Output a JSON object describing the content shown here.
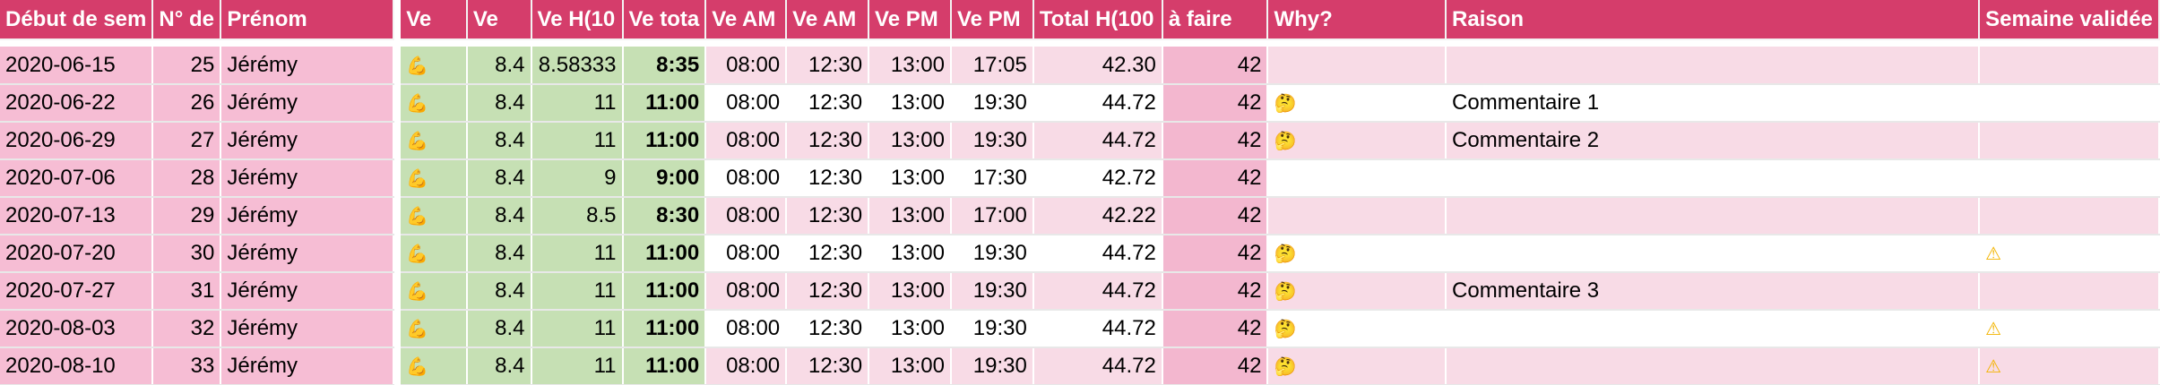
{
  "colors": {
    "header_bg": "#d53d6b",
    "left_pink": "#f6bdd4",
    "green": "#c6e0b4",
    "stripe": "#f8dbe6"
  },
  "headers": {
    "date": "Début de sem",
    "week": "N° de",
    "name": "Prénom",
    "ve1": "Ve",
    "ve2": "Ve",
    "veh": "Ve H(10",
    "vetot": "Ve tota",
    "veam1": "Ve AM",
    "veam2": "Ve AM",
    "vepm1": "Ve PM",
    "vepm2": "Ve PM",
    "total": "Total H(100",
    "afaire": "à faire",
    "why": "Why?",
    "raison": "Raison",
    "validee": "Semaine validée"
  },
  "icons": {
    "muscle": "muscle-icon",
    "thinking": "thinking-face-icon",
    "warning": "warning-icon"
  },
  "rows": [
    {
      "date": "2020-06-15",
      "week": "25",
      "name": "Jérémy",
      "ve": "8.4",
      "veh": "8.58333",
      "vetot": "8:35",
      "am1": "08:00",
      "am2": "12:30",
      "pm1": "13:00",
      "pm2": "17:05",
      "total": "42.30",
      "afaire": "42",
      "why": false,
      "raison": "",
      "warn": false
    },
    {
      "date": "2020-06-22",
      "week": "26",
      "name": "Jérémy",
      "ve": "8.4",
      "veh": "11",
      "vetot": "11:00",
      "am1": "08:00",
      "am2": "12:30",
      "pm1": "13:00",
      "pm2": "19:30",
      "total": "44.72",
      "afaire": "42",
      "why": true,
      "raison": "Commentaire 1",
      "warn": false
    },
    {
      "date": "2020-06-29",
      "week": "27",
      "name": "Jérémy",
      "ve": "8.4",
      "veh": "11",
      "vetot": "11:00",
      "am1": "08:00",
      "am2": "12:30",
      "pm1": "13:00",
      "pm2": "19:30",
      "total": "44.72",
      "afaire": "42",
      "why": true,
      "raison": "Commentaire 2",
      "warn": false
    },
    {
      "date": "2020-07-06",
      "week": "28",
      "name": "Jérémy",
      "ve": "8.4",
      "veh": "9",
      "vetot": "9:00",
      "am1": "08:00",
      "am2": "12:30",
      "pm1": "13:00",
      "pm2": "17:30",
      "total": "42.72",
      "afaire": "42",
      "why": false,
      "raison": "",
      "warn": false
    },
    {
      "date": "2020-07-13",
      "week": "29",
      "name": "Jérémy",
      "ve": "8.4",
      "veh": "8.5",
      "vetot": "8:30",
      "am1": "08:00",
      "am2": "12:30",
      "pm1": "13:00",
      "pm2": "17:00",
      "total": "42.22",
      "afaire": "42",
      "why": false,
      "raison": "",
      "warn": false
    },
    {
      "date": "2020-07-20",
      "week": "30",
      "name": "Jérémy",
      "ve": "8.4",
      "veh": "11",
      "vetot": "11:00",
      "am1": "08:00",
      "am2": "12:30",
      "pm1": "13:00",
      "pm2": "19:30",
      "total": "44.72",
      "afaire": "42",
      "why": true,
      "raison": "",
      "warn": true
    },
    {
      "date": "2020-07-27",
      "week": "31",
      "name": "Jérémy",
      "ve": "8.4",
      "veh": "11",
      "vetot": "11:00",
      "am1": "08:00",
      "am2": "12:30",
      "pm1": "13:00",
      "pm2": "19:30",
      "total": "44.72",
      "afaire": "42",
      "why": true,
      "raison": "Commentaire 3",
      "warn": false
    },
    {
      "date": "2020-08-03",
      "week": "32",
      "name": "Jérémy",
      "ve": "8.4",
      "veh": "11",
      "vetot": "11:00",
      "am1": "08:00",
      "am2": "12:30",
      "pm1": "13:00",
      "pm2": "19:30",
      "total": "44.72",
      "afaire": "42",
      "why": true,
      "raison": "",
      "warn": true
    },
    {
      "date": "2020-08-10",
      "week": "33",
      "name": "Jérémy",
      "ve": "8.4",
      "veh": "11",
      "vetot": "11:00",
      "am1": "08:00",
      "am2": "12:30",
      "pm1": "13:00",
      "pm2": "19:30",
      "total": "44.72",
      "afaire": "42",
      "why": true,
      "raison": "",
      "warn": true
    }
  ]
}
